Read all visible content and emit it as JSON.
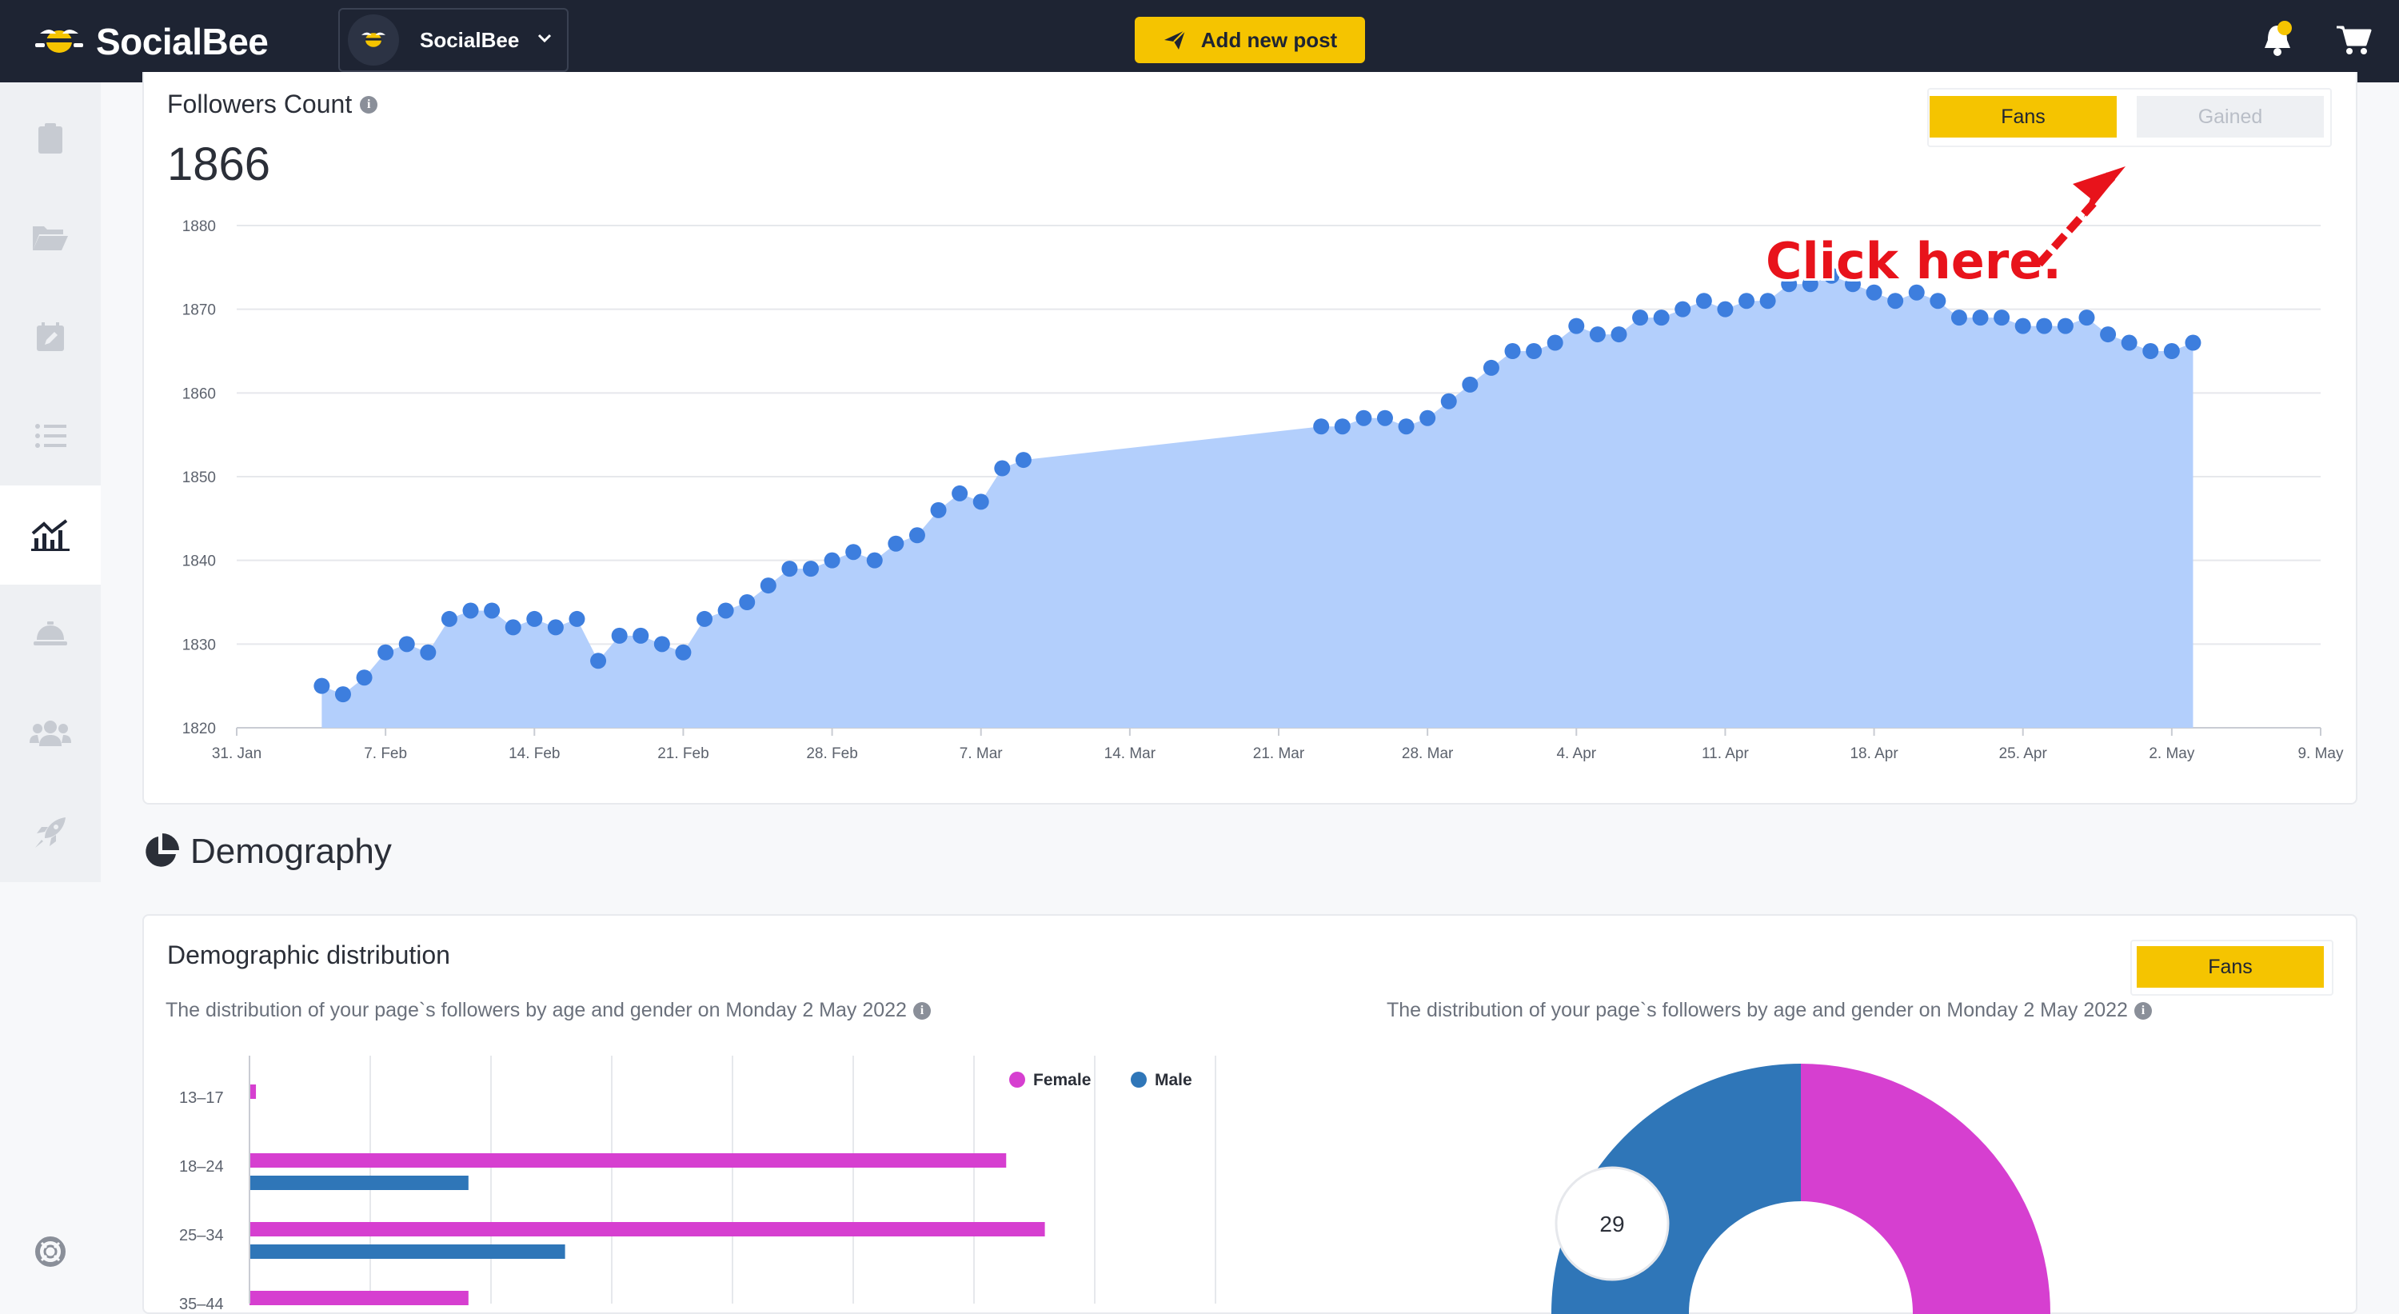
{
  "app": {
    "brand": "SocialBee",
    "account_name": "SocialBee",
    "add_post_label": "Add new post",
    "accent_color": "#f5c400"
  },
  "sidebar": {
    "items": [
      {
        "icon": "clipboard-icon"
      },
      {
        "icon": "folder-open-icon"
      },
      {
        "icon": "calendar-edit-icon"
      },
      {
        "icon": "list-icon"
      },
      {
        "icon": "analytics-icon",
        "active": true
      },
      {
        "icon": "concierge-bell-icon"
      },
      {
        "icon": "users-icon"
      },
      {
        "icon": "rocket-icon"
      }
    ],
    "help_icon": "lifebuoy-icon"
  },
  "followers": {
    "title": "Followers Count",
    "value": "1866",
    "toggle_fans": "Fans",
    "toggle_gained": "Gained",
    "annotation": "Click here."
  },
  "demography": {
    "section_title": "Demography",
    "card_title": "Demographic distribution",
    "fans_label": "Fans",
    "subtitle_left": "The distribution of your page`s followers by age and gender on Monday 2 May 2022",
    "subtitle_right": "The distribution of your page`s followers by age and gender on Monday 2 May 2022"
  },
  "chart_data": [
    {
      "type": "area",
      "series": [
        {
          "name": "Followers Count",
          "color": "#3d7ede",
          "fill": "#b3cffc"
        }
      ],
      "ylim": [
        1820,
        1880
      ],
      "yticks": [
        1820,
        1830,
        1840,
        1850,
        1860,
        1870,
        1880
      ],
      "x_tick_labels": [
        "31. Jan",
        "7. Feb",
        "14. Feb",
        "21. Feb",
        "28. Feb",
        "7. Mar",
        "14. Mar",
        "21. Mar",
        "28. Mar",
        "4. Apr",
        "11. Apr",
        "18. Apr",
        "25. Apr",
        "2. May",
        "9. May"
      ],
      "x_start": "31. Jan",
      "points": [
        [
          "4. Feb",
          1825
        ],
        [
          "5. Feb",
          1824
        ],
        [
          "6. Feb",
          1826
        ],
        [
          "7. Feb",
          1829
        ],
        [
          "8. Feb",
          1830
        ],
        [
          "9. Feb",
          1829
        ],
        [
          "10. Feb",
          1833
        ],
        [
          "11. Feb",
          1834
        ],
        [
          "12. Feb",
          1834
        ],
        [
          "13. Feb",
          1832
        ],
        [
          "14. Feb",
          1833
        ],
        [
          "15. Feb",
          1832
        ],
        [
          "16. Feb",
          1833
        ],
        [
          "17. Feb",
          1828
        ],
        [
          "18. Feb",
          1831
        ],
        [
          "19. Feb",
          1831
        ],
        [
          "20. Feb",
          1830
        ],
        [
          "21. Feb",
          1829
        ],
        [
          "22. Feb",
          1833
        ],
        [
          "23. Feb",
          1834
        ],
        [
          "24. Feb",
          1835
        ],
        [
          "25. Feb",
          1837
        ],
        [
          "26. Feb",
          1839
        ],
        [
          "27. Feb",
          1839
        ],
        [
          "28. Feb",
          1840
        ],
        [
          "1. Mar",
          1841
        ],
        [
          "2. Mar",
          1840
        ],
        [
          "3. Mar",
          1842
        ],
        [
          "4. Mar",
          1843
        ],
        [
          "5. Mar",
          1846
        ],
        [
          "6. Mar",
          1848
        ],
        [
          "7. Mar",
          1847
        ],
        [
          "8. Mar",
          1851
        ],
        [
          "9. Mar",
          1852
        ],
        [
          "23. Mar",
          1856
        ],
        [
          "24. Mar",
          1856
        ],
        [
          "25. Mar",
          1857
        ],
        [
          "26. Mar",
          1857
        ],
        [
          "27. Mar",
          1856
        ],
        [
          "28. Mar",
          1857
        ],
        [
          "29. Mar",
          1859
        ],
        [
          "30. Mar",
          1861
        ],
        [
          "31. Mar",
          1863
        ],
        [
          "1. Apr",
          1865
        ],
        [
          "2. Apr",
          1865
        ],
        [
          "3. Apr",
          1866
        ],
        [
          "4. Apr",
          1868
        ],
        [
          "5. Apr",
          1867
        ],
        [
          "6. Apr",
          1867
        ],
        [
          "7. Apr",
          1869
        ],
        [
          "8. Apr",
          1869
        ],
        [
          "9. Apr",
          1870
        ],
        [
          "10. Apr",
          1871
        ],
        [
          "11. Apr",
          1870
        ],
        [
          "12. Apr",
          1871
        ],
        [
          "13. Apr",
          1871
        ],
        [
          "14. Apr",
          1873
        ],
        [
          "15. Apr",
          1873
        ],
        [
          "16. Apr",
          1874
        ],
        [
          "17. Apr",
          1873
        ],
        [
          "18. Apr",
          1872
        ],
        [
          "19. Apr",
          1871
        ],
        [
          "20. Apr",
          1872
        ],
        [
          "21. Apr",
          1871
        ],
        [
          "22. Apr",
          1869
        ],
        [
          "23. Apr",
          1869
        ],
        [
          "24. Apr",
          1869
        ],
        [
          "25. Apr",
          1868
        ],
        [
          "26. Apr",
          1868
        ],
        [
          "27. Apr",
          1868
        ],
        [
          "28. Apr",
          1869
        ],
        [
          "29. Apr",
          1867
        ],
        [
          "30. Apr",
          1866
        ],
        [
          "1. May",
          1865
        ],
        [
          "2. May",
          1865
        ],
        [
          "3. May",
          1866
        ]
      ]
    },
    {
      "type": "bar",
      "orientation": "horizontal",
      "categories": [
        "13-17",
        "18-24",
        "25-34",
        "35-44"
      ],
      "legend": [
        "Female",
        "Male"
      ],
      "series": [
        {
          "name": "Female",
          "color": "#d63fd0",
          "values": [
            0.2,
            23.5,
            24.7,
            6.8
          ]
        },
        {
          "name": "Male",
          "color": "#2f76b8",
          "values": [
            0,
            6.8,
            9.8,
            0
          ]
        }
      ]
    },
    {
      "type": "pie",
      "style": "donut",
      "series": [
        {
          "name": "Female",
          "color": "#d63fd0",
          "value": 71
        },
        {
          "name": "Male",
          "color": "#2f76b8",
          "value": 29
        }
      ],
      "labels": [
        "29"
      ]
    }
  ]
}
